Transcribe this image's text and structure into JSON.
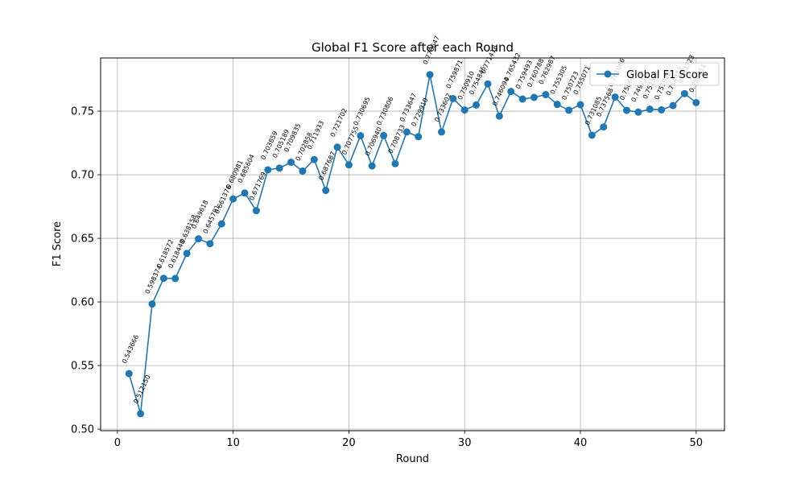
{
  "chart_data": {
    "type": "line",
    "title": "Global F1 Score after each Round",
    "xlabel": "Round",
    "ylabel": "F1 Score",
    "xlim": [
      -1.45,
      52.45
    ],
    "ylim": [
      0.4988,
      0.7918
    ],
    "xticks": [
      0,
      10,
      20,
      30,
      40,
      50
    ],
    "yticks": [
      0.5,
      0.55,
      0.6,
      0.65,
      0.7,
      0.75
    ],
    "grid": true,
    "legend": "top-right",
    "series": [
      {
        "name": "Global F1 Score",
        "color": "#1f77b4",
        "marker": "circle",
        "x": [
          1,
          2,
          3,
          4,
          5,
          6,
          7,
          8,
          9,
          10,
          11,
          12,
          13,
          14,
          15,
          16,
          17,
          18,
          19,
          20,
          21,
          22,
          23,
          24,
          25,
          26,
          27,
          28,
          29,
          30,
          31,
          32,
          33,
          34,
          35,
          36,
          37,
          38,
          39,
          40,
          41,
          42,
          43,
          44,
          45,
          46,
          47,
          48,
          49,
          50
        ],
        "y": [
          0.543666,
          0.51215,
          0.598374,
          0.618572,
          0.618448,
          0.638158,
          0.649618,
          0.645791,
          0.661376,
          0.680981,
          0.685604,
          0.671769,
          0.703859,
          0.705189,
          0.709835,
          0.702858,
          0.711933,
          0.687687,
          0.721702,
          0.707755,
          0.730695,
          0.70694,
          0.730806,
          0.708733,
          0.733647,
          0.72991,
          0.778647,
          0.733602,
          0.759871,
          0.75091,
          0.754845,
          0.771418,
          0.746094,
          0.765432,
          0.759493,
          0.760788,
          0.762987,
          0.755305,
          0.750723,
          0.755071,
          0.731085,
          0.737568,
          0.761066,
          0.750612,
          0.749211,
          0.751508,
          0.751022,
          0.754422,
          0.763723,
          0.756711
        ],
        "labels": [
          "0.543666",
          "0.512150",
          "0.598374",
          "0.618572",
          "0.618448",
          "0.638158",
          "0.649618",
          "0.645791",
          "0.661376",
          "0.680981",
          "0.685604",
          "0.671769",
          "0.703859",
          "0.705189",
          "0.709835",
          "0.702858",
          "0.711933",
          "0.687687",
          "0.721702",
          "0.707755",
          "0.730695",
          "0.706940",
          "0.730806",
          "0.708733",
          "0.733647",
          "0.729910",
          "0.778647",
          "0.733602",
          "0.759871",
          "0.750910",
          "0.754845",
          "0.771418",
          "0.746094",
          "0.765432",
          "0.759493",
          "0.760788",
          "0.762987",
          "0.755305",
          "0.750723",
          "0.755071",
          "0.731085",
          "0.737568",
          "0.761066",
          "0.750612",
          "0.749211",
          "0.751508",
          "0.751022",
          "0.754422",
          "0.763723",
          "0.756711"
        ]
      }
    ]
  }
}
